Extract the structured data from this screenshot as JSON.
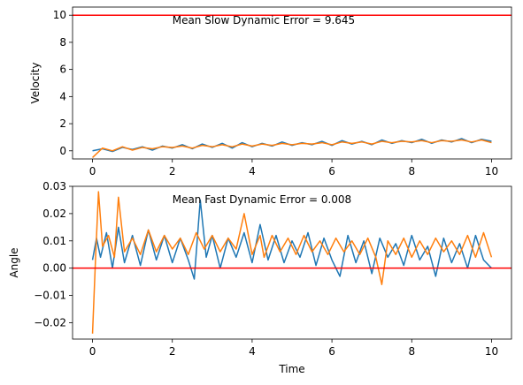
{
  "colors": {
    "series_1": "#1f77b4",
    "series_2": "#ff7f0e",
    "reference": "#ff0000",
    "axes": "#000000"
  },
  "chart_data": [
    {
      "type": "line",
      "xlabel": "",
      "ylabel": "Velocity",
      "annotation": "Mean Slow Dynamic Error = 9.645",
      "xlim": [
        -0.5,
        10.5
      ],
      "ylim": [
        -0.6,
        10.6
      ],
      "xticks": [
        0,
        2,
        4,
        6,
        8,
        10
      ],
      "yticks": [
        0,
        2,
        4,
        6,
        8,
        10
      ],
      "xtick_labels": [
        "0",
        "2",
        "4",
        "6",
        "8",
        "10"
      ],
      "ytick_labels": [
        "0",
        "2",
        "4",
        "6",
        "8",
        "10"
      ],
      "reference_line": 10,
      "grid": false,
      "legend": "none",
      "series": [
        {
          "color": "#1f77b4",
          "x": [
            0,
            0.25,
            0.5,
            0.75,
            1,
            1.25,
            1.5,
            1.75,
            2,
            2.25,
            2.5,
            2.75,
            3,
            3.25,
            3.5,
            3.75,
            4,
            4.25,
            4.5,
            4.75,
            5,
            5.25,
            5.5,
            5.75,
            6,
            6.25,
            6.5,
            6.75,
            7,
            7.25,
            7.5,
            7.75,
            8,
            8.25,
            8.5,
            8.75,
            9,
            9.25,
            9.5,
            9.75,
            10
          ],
          "y": [
            0.0,
            0.15,
            -0.05,
            0.25,
            0.1,
            0.3,
            0.05,
            0.35,
            0.2,
            0.45,
            0.15,
            0.5,
            0.25,
            0.55,
            0.2,
            0.6,
            0.3,
            0.55,
            0.35,
            0.65,
            0.4,
            0.6,
            0.45,
            0.7,
            0.4,
            0.75,
            0.5,
            0.7,
            0.45,
            0.8,
            0.55,
            0.75,
            0.6,
            0.85,
            0.55,
            0.8,
            0.65,
            0.9,
            0.6,
            0.85,
            0.7
          ]
        },
        {
          "color": "#ff7f0e",
          "x": [
            0,
            0.25,
            0.5,
            0.75,
            1,
            1.25,
            1.5,
            1.75,
            2,
            2.25,
            2.5,
            2.75,
            3,
            3.25,
            3.5,
            3.75,
            4,
            4.25,
            4.5,
            4.75,
            5,
            5.25,
            5.5,
            5.75,
            6,
            6.25,
            6.5,
            6.75,
            7,
            7.25,
            7.5,
            7.75,
            8,
            8.25,
            8.5,
            8.75,
            9,
            9.25,
            9.5,
            9.75,
            10
          ],
          "y": [
            -0.5,
            0.2,
            0.0,
            0.3,
            0.05,
            0.25,
            0.15,
            0.3,
            0.25,
            0.35,
            0.2,
            0.4,
            0.3,
            0.45,
            0.3,
            0.5,
            0.35,
            0.5,
            0.4,
            0.55,
            0.45,
            0.55,
            0.5,
            0.6,
            0.45,
            0.65,
            0.55,
            0.65,
            0.5,
            0.7,
            0.6,
            0.7,
            0.65,
            0.75,
            0.6,
            0.75,
            0.7,
            0.8,
            0.65,
            0.8,
            0.6
          ]
        }
      ]
    },
    {
      "type": "line",
      "xlabel": "Time",
      "ylabel": "Angle",
      "annotation": "Mean Fast Dynamic Error = 0.008",
      "xlim": [
        -0.5,
        10.5
      ],
      "ylim": [
        -0.026,
        0.03
      ],
      "xticks": [
        0,
        2,
        4,
        6,
        8,
        10
      ],
      "yticks": [
        -0.02,
        -0.01,
        0.0,
        0.01,
        0.02,
        0.03
      ],
      "xtick_labels": [
        "0",
        "2",
        "4",
        "6",
        "8",
        "10"
      ],
      "ytick_labels": [
        "−0.02",
        "−0.01",
        "0.00",
        "0.01",
        "0.02",
        "0.03"
      ],
      "reference_line": 0,
      "grid": false,
      "legend": "none",
      "series": [
        {
          "color": "#1f77b4",
          "x": [
            0,
            0.1,
            0.2,
            0.35,
            0.5,
            0.65,
            0.8,
            1.0,
            1.2,
            1.4,
            1.6,
            1.8,
            2.0,
            2.2,
            2.4,
            2.55,
            2.7,
            2.85,
            3.0,
            3.2,
            3.4,
            3.6,
            3.8,
            4.0,
            4.2,
            4.4,
            4.6,
            4.8,
            5.0,
            5.2,
            5.4,
            5.6,
            5.8,
            6.0,
            6.2,
            6.4,
            6.6,
            6.8,
            7.0,
            7.2,
            7.4,
            7.6,
            7.8,
            8.0,
            8.2,
            8.4,
            8.6,
            8.8,
            9.0,
            9.2,
            9.4,
            9.6,
            9.8,
            10.0
          ],
          "y": [
            0.003,
            0.011,
            0.004,
            0.013,
            0.0,
            0.015,
            0.002,
            0.012,
            0.001,
            0.014,
            0.003,
            0.012,
            0.002,
            0.011,
            0.003,
            -0.004,
            0.025,
            0.004,
            0.012,
            0.0,
            0.011,
            0.004,
            0.013,
            0.002,
            0.016,
            0.003,
            0.012,
            0.002,
            0.01,
            0.004,
            0.013,
            0.001,
            0.011,
            0.003,
            -0.003,
            0.012,
            0.002,
            0.01,
            -0.002,
            0.011,
            0.004,
            0.009,
            0.001,
            0.012,
            0.003,
            0.008,
            -0.003,
            0.011,
            0.002,
            0.009,
            0.0,
            0.012,
            0.003,
            0.0
          ]
        },
        {
          "color": "#ff7f0e",
          "x": [
            0,
            0.08,
            0.15,
            0.25,
            0.4,
            0.55,
            0.65,
            0.8,
            1.0,
            1.2,
            1.4,
            1.6,
            1.8,
            2.0,
            2.2,
            2.4,
            2.6,
            2.8,
            3.0,
            3.2,
            3.4,
            3.6,
            3.8,
            4.0,
            4.2,
            4.3,
            4.5,
            4.7,
            4.9,
            5.1,
            5.3,
            5.5,
            5.7,
            5.9,
            6.1,
            6.3,
            6.5,
            6.7,
            6.9,
            7.1,
            7.25,
            7.4,
            7.6,
            7.8,
            8.0,
            8.2,
            8.4,
            8.6,
            8.8,
            9.0,
            9.2,
            9.4,
            9.6,
            9.8,
            10.0
          ],
          "y": [
            -0.024,
            0.005,
            0.028,
            0.008,
            0.012,
            0.004,
            0.026,
            0.006,
            0.011,
            0.005,
            0.014,
            0.006,
            0.012,
            0.007,
            0.011,
            0.005,
            0.013,
            0.007,
            0.012,
            0.006,
            0.011,
            0.007,
            0.02,
            0.005,
            0.012,
            0.004,
            0.012,
            0.006,
            0.011,
            0.005,
            0.012,
            0.006,
            0.01,
            0.005,
            0.011,
            0.006,
            0.01,
            0.005,
            0.011,
            0.004,
            -0.006,
            0.01,
            0.005,
            0.011,
            0.004,
            0.01,
            0.005,
            0.011,
            0.006,
            0.01,
            0.005,
            0.012,
            0.004,
            0.013,
            0.004
          ]
        }
      ]
    }
  ]
}
